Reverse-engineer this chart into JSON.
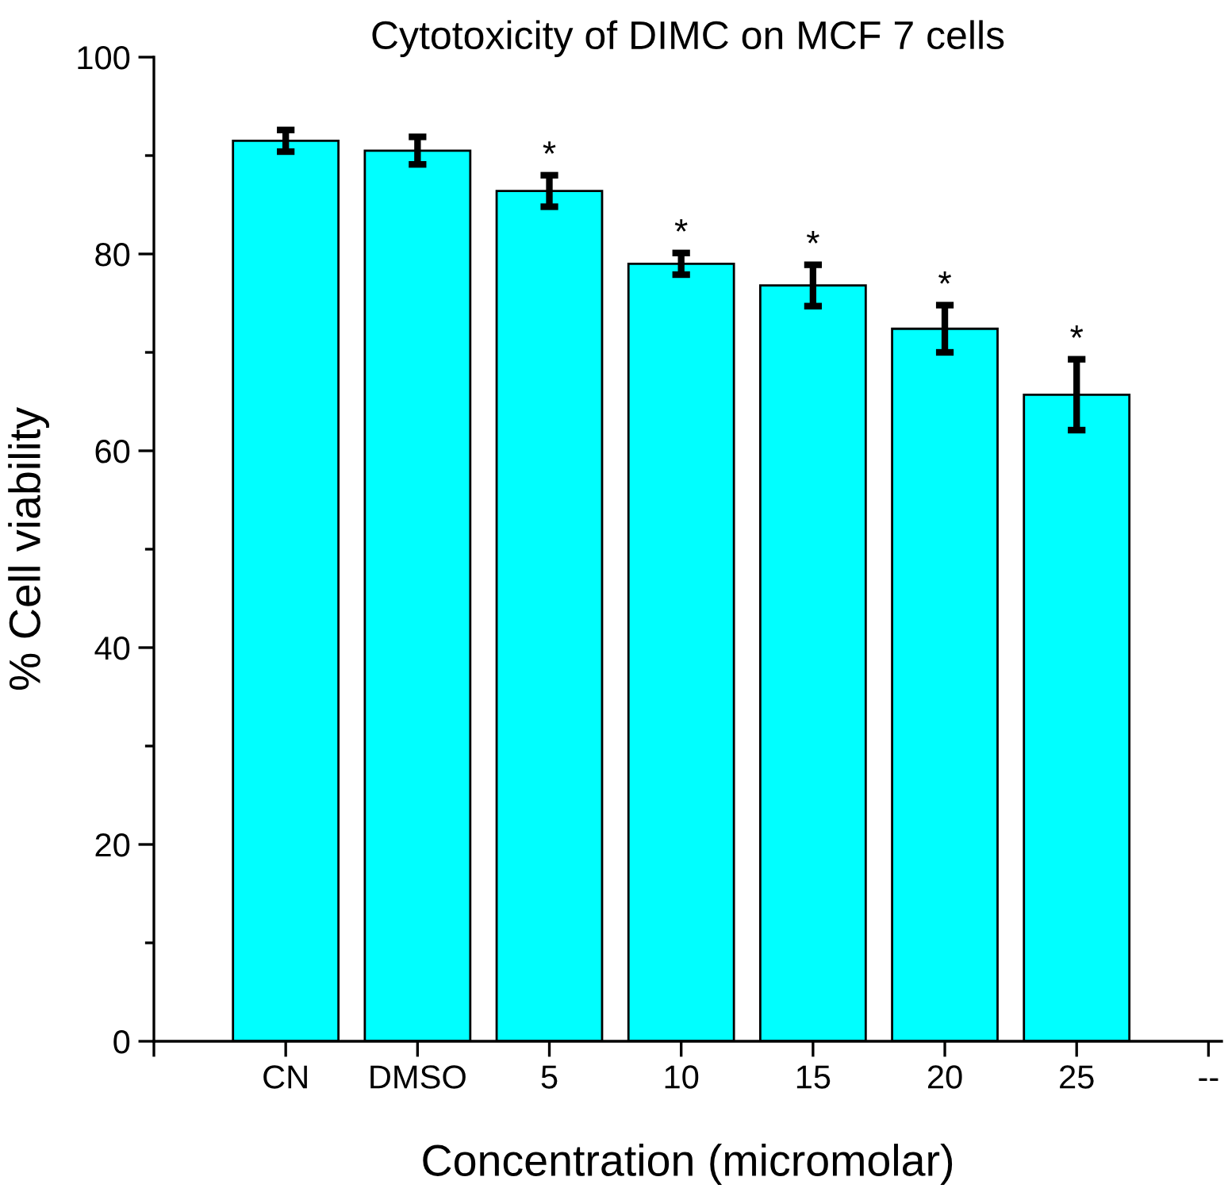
{
  "chart_data": {
    "type": "bar",
    "title": "Cytotoxicity of DIMC on MCF 7 cells",
    "xlabel": "Concentration (micromolar)",
    "ylabel": "% Cell viability",
    "categories": [
      null,
      "CN",
      "DMSO",
      "5",
      "10",
      "15",
      "20",
      "25",
      "--"
    ],
    "values": [
      null,
      91.5,
      90.5,
      86.4,
      79.0,
      76.8,
      72.4,
      65.7,
      null
    ],
    "errors": [
      null,
      1.1,
      1.4,
      1.6,
      1.1,
      2.1,
      2.4,
      3.6,
      null
    ],
    "color": "#00ffff",
    "ylim": [
      0,
      100
    ],
    "yticks": [
      0,
      20,
      40,
      60,
      80,
      100
    ],
    "grid": false,
    "annotations": [
      {
        "text": "*",
        "x": "5",
        "y": 88.0
      },
      {
        "text": "*",
        "x": "10",
        "y": 80.1
      },
      {
        "text": "*",
        "x": "15",
        "y": 78.9
      },
      {
        "text": "*",
        "x": "20",
        "y": 74.8
      },
      {
        "text": "*",
        "x": "25",
        "y": 69.3
      }
    ]
  }
}
